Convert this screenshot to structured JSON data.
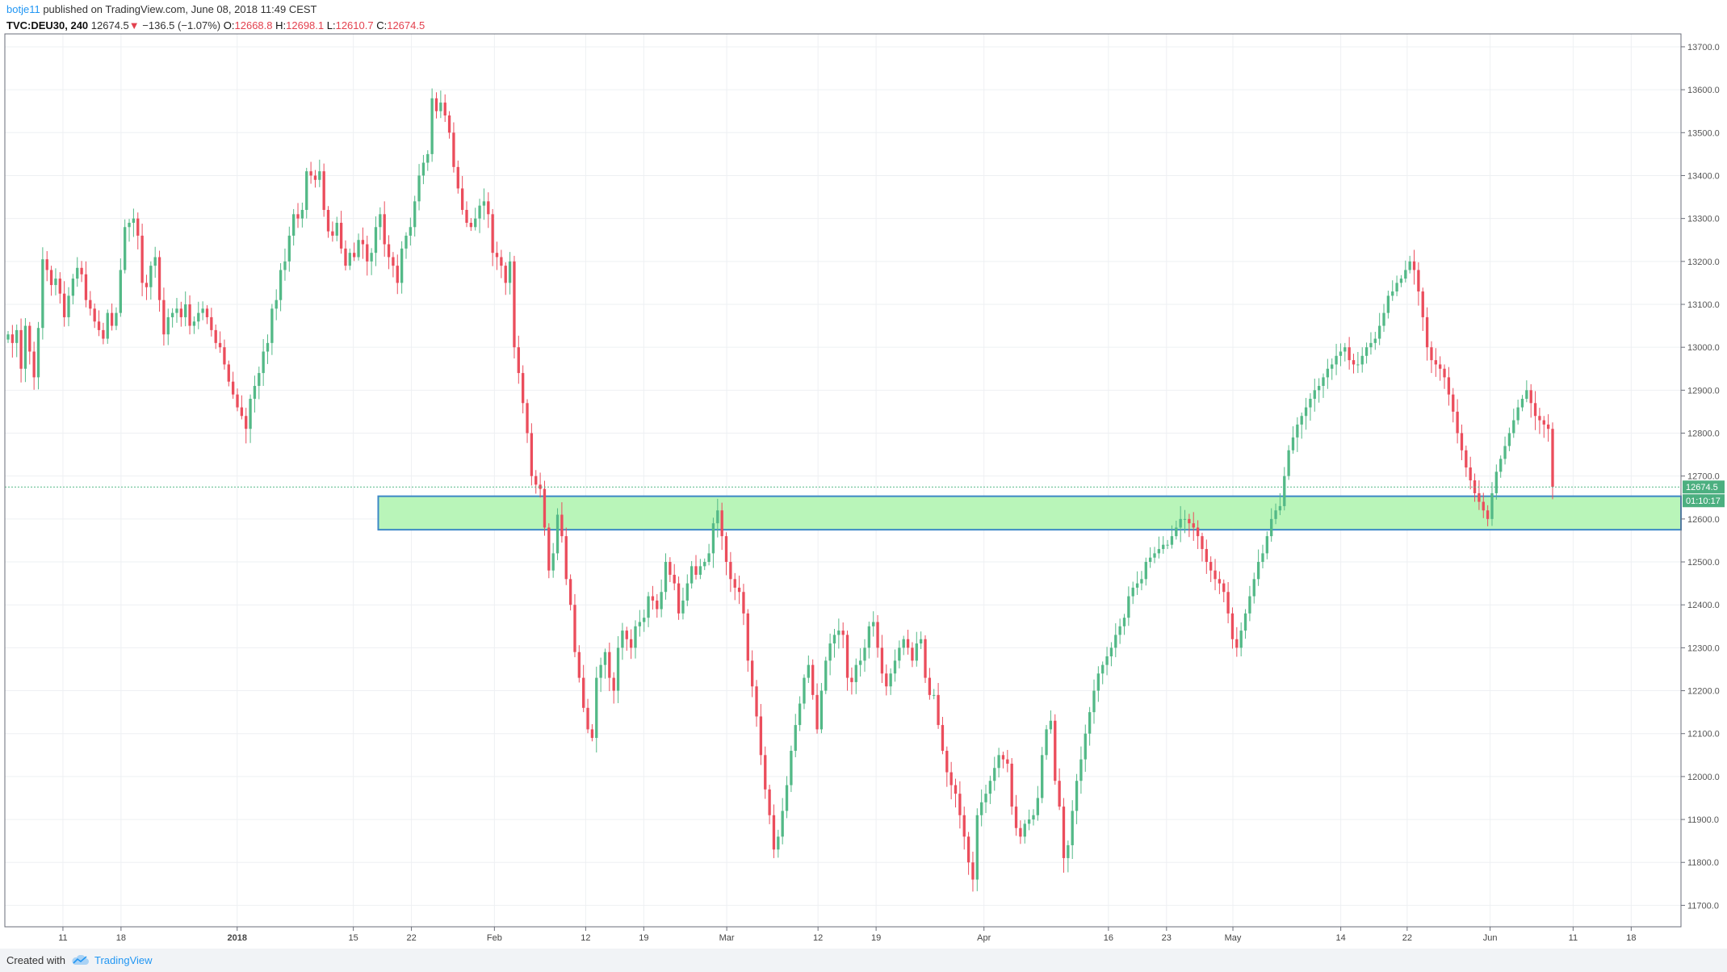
{
  "header": {
    "author": "botje11",
    "published": "published on TradingView.com, June 08, 2018 11:49 CEST",
    "symbol": "TVC:DEU30, 240",
    "last": "12674.5",
    "change": "−136.5 (−1.07%)",
    "o_label": "O:",
    "o_value": "12668.8",
    "h_label": "H:",
    "h_value": "12698.1",
    "l_label": "L:",
    "l_value": "12610.7",
    "c_label": "C:",
    "c_value": "12674.5",
    "down_arrow": "▼"
  },
  "price_axis": {
    "labels": [
      "13700.0",
      "13600.0",
      "13500.0",
      "13400.0",
      "13300.0",
      "13200.0",
      "13100.0",
      "13000.0",
      "12900.0",
      "12800.0",
      "12700.0",
      "12600.0",
      "12500.0",
      "12400.0",
      "12300.0",
      "12200.0",
      "12100.0",
      "12000.0",
      "11900.0",
      "11800.0",
      "11700.0"
    ],
    "last_price_badge": "12674.5",
    "countdown_badge": "01:10:17"
  },
  "time_axis": {
    "labels": [
      "11",
      "18",
      "2018",
      "15",
      "22",
      "Feb",
      "12",
      "19",
      "Mar",
      "12",
      "19",
      "Apr",
      "16",
      "23",
      "May",
      "14",
      "22",
      "Jun",
      "11",
      "18"
    ]
  },
  "footer": {
    "created_with": "Created with",
    "brand": "TradingView"
  },
  "colors": {
    "up": "#53b987",
    "down": "#eb4d5c",
    "zone_fill": "#b9f5b9",
    "zone_border": "#3d88c7",
    "grid": "#eef0f3",
    "price_line": "#53b987",
    "badge": "#4caf80",
    "brand": "#2196f3"
  },
  "chart_data": {
    "type": "candlestick",
    "instrument": "TVC:DEU30",
    "interval": "240",
    "ylim": [
      11650,
      13730
    ],
    "x_range": [
      "2017-12-04",
      "2018-06-24"
    ],
    "x_ticks": [
      "11",
      "18",
      "2018",
      "15",
      "22",
      "Feb",
      "12",
      "19",
      "Mar",
      "12",
      "19",
      "Apr",
      "16",
      "23",
      "May",
      "14",
      "22",
      "Jun",
      "11",
      "18"
    ],
    "y_ticks": [
      13700,
      13600,
      13500,
      13400,
      13300,
      13200,
      13100,
      13000,
      12900,
      12800,
      12700,
      12600,
      12500,
      12400,
      12300,
      12200,
      12100,
      12000,
      11900,
      11800,
      11700
    ],
    "last_price": 12674.5,
    "zone": {
      "low": 12575,
      "high": 12653,
      "from": "2018-01-18",
      "to": "2018-06-24"
    },
    "closes": [
      13030,
      13010,
      13040,
      12950,
      13050,
      12990,
      12930,
      13045,
      13205,
      13180,
      13145,
      13160,
      13125,
      13070,
      13120,
      13160,
      13185,
      13170,
      13110,
      13090,
      13060,
      13040,
      13020,
      13080,
      13050,
      13080,
      13180,
      13280,
      13290,
      13300,
      13260,
      13150,
      13140,
      13190,
      13210,
      13110,
      13030,
      13070,
      13080,
      13090,
      13070,
      13100,
      13050,
      13060,
      13080,
      13090,
      13070,
      13040,
      13010,
      13000,
      12960,
      12920,
      12890,
      12860,
      12840,
      12810,
      12880,
      12910,
      12940,
      12990,
      13010,
      13090,
      13110,
      13180,
      13200,
      13260,
      13310,
      13300,
      13320,
      13410,
      13400,
      13390,
      13410,
      13320,
      13270,
      13260,
      13290,
      13230,
      13190,
      13220,
      13210,
      13250,
      13240,
      13200,
      13220,
      13280,
      13310,
      13240,
      13210,
      13190,
      13150,
      13230,
      13260,
      13280,
      13340,
      13400,
      13430,
      13450,
      13580,
      13550,
      13570,
      13540,
      13500,
      13420,
      13370,
      13320,
      13290,
      13280,
      13300,
      13330,
      13340,
      13310,
      13220,
      13210,
      13190,
      13150,
      13200,
      13000,
      12940,
      12870,
      12800,
      12700,
      12680,
      12670,
      12580,
      12480,
      12520,
      12610,
      12560,
      12460,
      12400,
      12290,
      12230,
      12160,
      12110,
      12090,
      12230,
      12260,
      12290,
      12230,
      12200,
      12300,
      12340,
      12320,
      12300,
      12350,
      12360,
      12370,
      12420,
      12410,
      12390,
      12430,
      12500,
      12470,
      12450,
      12380,
      12410,
      12450,
      12490,
      12470,
      12490,
      12500,
      12520,
      12590,
      12620,
      12560,
      12500,
      12460,
      12440,
      12430,
      12380,
      12270,
      12210,
      12140,
      12050,
      11970,
      11910,
      11830,
      11860,
      11920,
      11980,
      12060,
      12120,
      12170,
      12230,
      12260,
      12190,
      12110,
      12200,
      12270,
      12310,
      12330,
      12340,
      12330,
      12230,
      12220,
      12260,
      12270,
      12300,
      12350,
      12360,
      12300,
      12240,
      12210,
      12240,
      12270,
      12300,
      12320,
      12300,
      12270,
      12310,
      12320,
      12230,
      12190,
      12190,
      12120,
      12060,
      12010,
      11980,
      11960,
      11910,
      11860,
      11800,
      11760,
      11910,
      11940,
      11960,
      11990,
      12020,
      12050,
      12040,
      12030,
      11930,
      11880,
      11860,
      11890,
      11900,
      11910,
      11950,
      12050,
      12110,
      12130,
      11990,
      11930,
      11810,
      11840,
      11920,
      11990,
      12040,
      12100,
      12150,
      12200,
      12240,
      12260,
      12280,
      12300,
      12330,
      12350,
      12370,
      12420,
      12440,
      12450,
      12460,
      12500,
      12510,
      12520,
      12530,
      12540,
      12540,
      12560,
      12580,
      12600,
      12600,
      12590,
      12580,
      12560,
      12530,
      12500,
      12480,
      12460,
      12450,
      12430,
      12380,
      12320,
      12300,
      12340,
      12380,
      12420,
      12460,
      12500,
      12520,
      12560,
      12600,
      12620,
      12630,
      12700,
      12760,
      12790,
      12820,
      12840,
      12860,
      12880,
      12900,
      12910,
      12930,
      12950,
      12960,
      12980,
      12990,
      13000,
      12970,
      12960,
      12960,
      12980,
      13000,
      13010,
      13020,
      13050,
      13080,
      13120,
      13130,
      13150,
      13160,
      13180,
      13200,
      13180,
      13130,
      13070,
      13000,
      12970,
      12960,
      12950,
      12930,
      12890,
      12850,
      12800,
      12760,
      12720,
      12690,
      12660,
      12640,
      12620,
      12600,
      12660,
      12710,
      12740,
      12770,
      12800,
      12830,
      12860,
      12880,
      12900,
      12870,
      12840,
      12830,
      12820,
      12810,
      12675
    ]
  }
}
